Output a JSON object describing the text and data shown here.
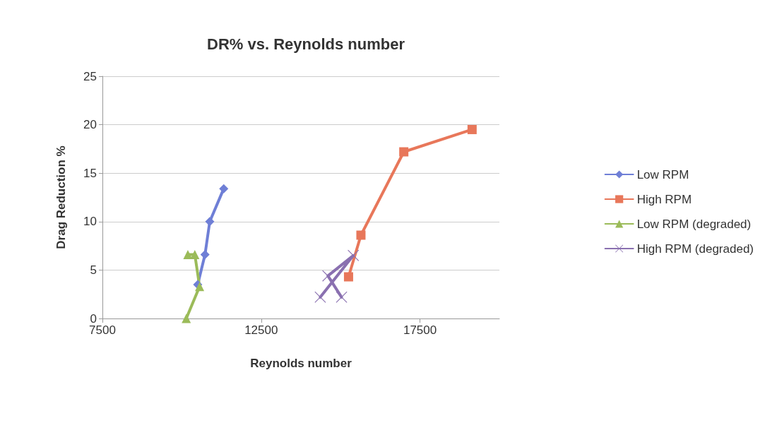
{
  "chart_data": {
    "type": "line",
    "title": "DR% vs. Reynolds number",
    "xlabel": "Reynolds number",
    "ylabel": "Drag Reduction %",
    "xlim": [
      7500,
      20000
    ],
    "xticks": [
      7500,
      12500,
      17500
    ],
    "ylim": [
      0,
      25
    ],
    "yticks": [
      0,
      5,
      10,
      15,
      20,
      25
    ],
    "grid": "y",
    "legend": "right",
    "series": [
      {
        "name": "Low RPM",
        "color": "#6f7fd6",
        "marker": "diamond",
        "x": [
          10500,
          10730,
          10880,
          11320
        ],
        "values": [
          3.5,
          6.6,
          10.0,
          13.4
        ]
      },
      {
        "name": "High RPM",
        "color": "#e8775a",
        "marker": "square",
        "x": [
          15250,
          15640,
          16990,
          19140
        ],
        "values": [
          4.3,
          8.6,
          17.2,
          19.5
        ]
      },
      {
        "name": "Low RPM (degraded)",
        "color": "#9bbb59",
        "marker": "triangle",
        "x": [
          10140,
          10560,
          10410,
          10190
        ],
        "values": [
          0,
          3.3,
          6.6,
          6.6
        ]
      },
      {
        "name": "High RPM (degraded)",
        "color": "#8a70b0",
        "marker": "cross",
        "x": [
          14360,
          15400,
          14600,
          15030
        ],
        "values": [
          2.2,
          6.5,
          4.4,
          2.2
        ]
      }
    ]
  }
}
